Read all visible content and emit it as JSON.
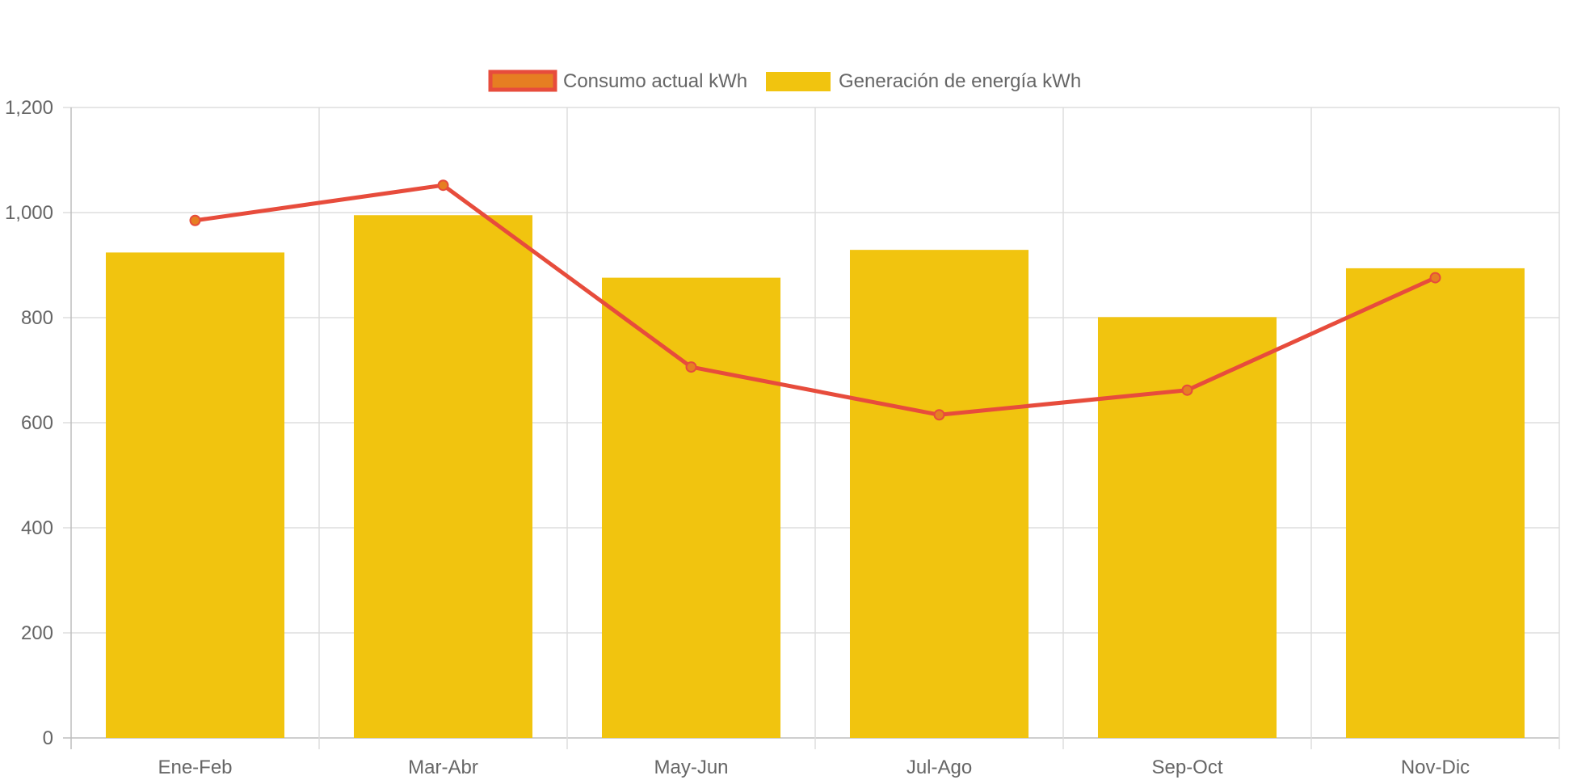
{
  "chart_data": {
    "type": "bar",
    "categories": [
      "Ene-Feb",
      "Mar-Abr",
      "May-Jun",
      "Jul-Ago",
      "Sep-Oct",
      "Nov-Dic"
    ],
    "series": [
      {
        "name": "Consumo actual kWh",
        "type": "line",
        "values": [
          985,
          1052,
          706,
          615,
          662,
          876
        ],
        "color": "#e74c3c",
        "point_color": "#e67e22"
      },
      {
        "name": "Generación de energía kWh",
        "type": "bar",
        "values": [
          924,
          995,
          876,
          929,
          801,
          894
        ],
        "color": "#f1c40f"
      }
    ],
    "title": "",
    "xlabel": "",
    "ylabel": "",
    "ylim": [
      0,
      1200
    ],
    "yticks": [
      0,
      200,
      400,
      600,
      800,
      1000,
      1200
    ],
    "ytick_labels": [
      "0",
      "200",
      "400",
      "600",
      "800",
      "1,000",
      "1,200"
    ],
    "grid": true,
    "legend": "top-center"
  }
}
